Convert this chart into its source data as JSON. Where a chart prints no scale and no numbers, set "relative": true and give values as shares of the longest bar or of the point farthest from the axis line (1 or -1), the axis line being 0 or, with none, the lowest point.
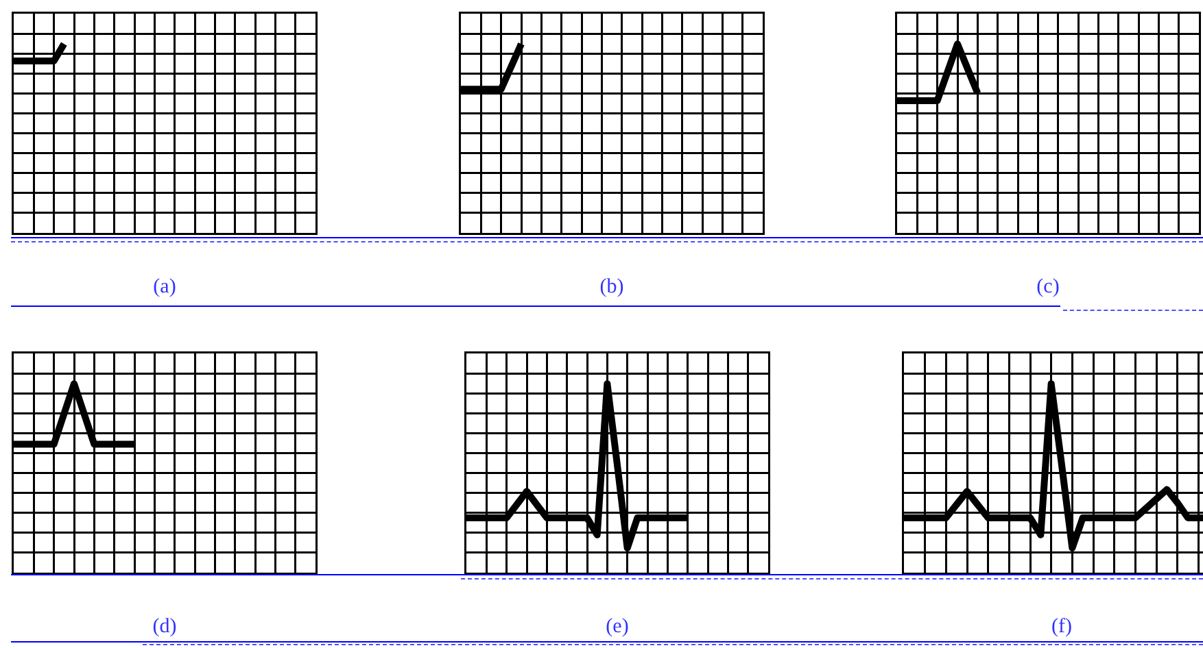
{
  "chart_data": [
    {
      "type": "line",
      "xlabel": "(a)",
      "relative": true,
      "grid": true,
      "marker": "none",
      "line_style": "solid",
      "categories": [
        null,
        null,
        null,
        null,
        null,
        null,
        null,
        null,
        null,
        null,
        null,
        null,
        null,
        null,
        null,
        null,
        null,
        null,
        null,
        null,
        null,
        null,
        null,
        null,
        null,
        null,
        null,
        null,
        null,
        null,
        null
      ],
      "series": [
        {
          "color": "#000000",
          "values": [
            0.91,
            0.91,
            0.91,
            0.91,
            0.91,
            1,
            null,
            null,
            null,
            null,
            null,
            null,
            null,
            null,
            null,
            null,
            null,
            null,
            null,
            null,
            null,
            null,
            null,
            null,
            null,
            null,
            null,
            null,
            null,
            null,
            null
          ]
        }
      ]
    },
    {
      "type": "line",
      "xlabel": "(b)",
      "relative": true,
      "grid": true,
      "marker": "none",
      "line_style": "solid",
      "categories": [
        null,
        null,
        null,
        null,
        null,
        null,
        null,
        null,
        null,
        null,
        null,
        null,
        null,
        null,
        null,
        null,
        null,
        null,
        null,
        null,
        null,
        null,
        null,
        null,
        null,
        null,
        null,
        null,
        null,
        null,
        null
      ],
      "series": [
        {
          "color": "#000000",
          "values": [
            0.76,
            0.76,
            0.76,
            0.76,
            0.76,
            0.88,
            1,
            null,
            null,
            null,
            null,
            null,
            null,
            null,
            null,
            null,
            null,
            null,
            null,
            null,
            null,
            null,
            null,
            null,
            null,
            null,
            null,
            null,
            null,
            null,
            null
          ]
        }
      ]
    },
    {
      "type": "line",
      "xlabel": "(c)",
      "relative": true,
      "grid": true,
      "marker": "none",
      "line_style": "solid",
      "categories": [
        null,
        null,
        null,
        null,
        null,
        null,
        null,
        null,
        null,
        null,
        null,
        null,
        null,
        null,
        null,
        null,
        null,
        null,
        null,
        null,
        null,
        null,
        null,
        null,
        null,
        null,
        null,
        null,
        null,
        null,
        null
      ],
      "series": [
        {
          "color": "#000000",
          "values": [
            0.7,
            0.7,
            0.7,
            0.7,
            0.7,
            0.85,
            1,
            0.87,
            0.74,
            null,
            null,
            null,
            null,
            null,
            null,
            null,
            null,
            null,
            null,
            null,
            null,
            null,
            null,
            null,
            null,
            null,
            null,
            null,
            null,
            null,
            null
          ]
        }
      ]
    },
    {
      "type": "line",
      "xlabel": "(d)",
      "relative": true,
      "grid": true,
      "marker": "none",
      "line_style": "solid",
      "categories": [
        null,
        null,
        null,
        null,
        null,
        null,
        null,
        null,
        null,
        null,
        null,
        null,
        null,
        null,
        null,
        null,
        null,
        null,
        null,
        null,
        null,
        null,
        null,
        null,
        null,
        null,
        null,
        null,
        null,
        null,
        null
      ],
      "series": [
        {
          "color": "#000000",
          "values": [
            0.68,
            0.68,
            0.68,
            0.68,
            0.68,
            0.84,
            1,
            0.84,
            0.68,
            0.68,
            0.68,
            0.68,
            0.68,
            null,
            null,
            null,
            null,
            null,
            null,
            null,
            null,
            null,
            null,
            null,
            null,
            null,
            null,
            null,
            null,
            null,
            null
          ]
        }
      ]
    },
    {
      "type": "line",
      "xlabel": "(e)",
      "relative": true,
      "grid": true,
      "marker": "none",
      "line_style": "solid",
      "categories": [
        null,
        null,
        null,
        null,
        null,
        null,
        null,
        null,
        null,
        null,
        null,
        null,
        null,
        null,
        null,
        null,
        null,
        null,
        null,
        null,
        null,
        null,
        null,
        null,
        null,
        null,
        null,
        null,
        null,
        null,
        null
      ],
      "series": [
        {
          "color": "#000000",
          "values": [
            0.29,
            0.29,
            0.29,
            0.29,
            0.29,
            0.36,
            0.43,
            0.36,
            0.29,
            0.29,
            0.29,
            0.29,
            0.29,
            0.2,
            1,
            0.57,
            0.13,
            0.29,
            0.29,
            0.29,
            0.29,
            0.29,
            0.29,
            null,
            null,
            null,
            null,
            null,
            null,
            null,
            null
          ]
        }
      ]
    },
    {
      "type": "line",
      "xlabel": "(f)",
      "relative": true,
      "grid": true,
      "marker": "none",
      "line_style": "solid",
      "categories": [
        null,
        null,
        null,
        null,
        null,
        null,
        null,
        null,
        null,
        null,
        null,
        null,
        null,
        null,
        null,
        null,
        null,
        null,
        null,
        null,
        null,
        null,
        null,
        null,
        null,
        null,
        null,
        null,
        null,
        null,
        null
      ],
      "series": [
        {
          "color": "#000000",
          "values": [
            0.29,
            0.29,
            0.29,
            0.29,
            0.29,
            0.36,
            0.43,
            0.36,
            0.29,
            0.29,
            0.29,
            0.29,
            0.29,
            0.2,
            1,
            0.57,
            0.13,
            0.29,
            0.29,
            0.29,
            0.29,
            0.29,
            0.29,
            0.34,
            0.39,
            0.44,
            0.37,
            0.29,
            0.29,
            0.29,
            null
          ]
        }
      ]
    }
  ]
}
